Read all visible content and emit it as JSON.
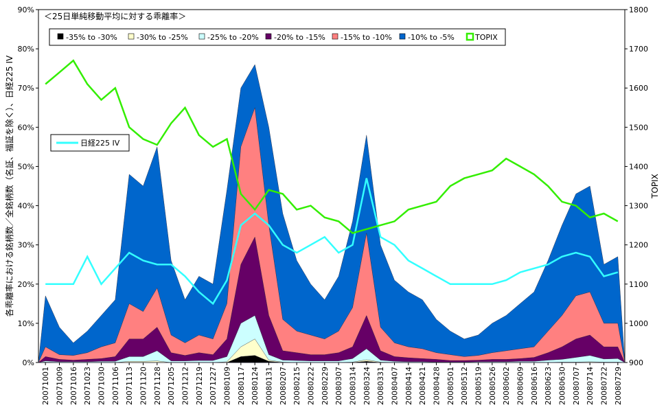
{
  "chart_data": {
    "type": "area",
    "title": "＜25日単純移動平均に対する乖離率＞",
    "ylabel_left": "各乖離率における銘柄数／全銘柄数（名証、福証を除く）、日経225 IV",
    "ylabel_right": "TOPIX",
    "ylim_left": [
      0,
      90
    ],
    "yticks_left": [
      "0%",
      "10%",
      "20%",
      "30%",
      "40%",
      "50%",
      "60%",
      "70%",
      "80%",
      "90%"
    ],
    "ylim_right": [
      900,
      1800
    ],
    "yticks_right": [
      "900",
      "1000",
      "1100",
      "1200",
      "1300",
      "1400",
      "1500",
      "1600",
      "1700",
      "1800"
    ],
    "x_tick_labels": [
      "20071001",
      "20071009",
      "20071016",
      "20071023",
      "20071030",
      "20071106",
      "20071113",
      "20071120",
      "20071128",
      "20071205",
      "20071212",
      "20071219",
      "20071227",
      "20080109",
      "20080117",
      "20080124",
      "20080131",
      "20080207",
      "20080215",
      "20080222",
      "20080229",
      "20080307",
      "20080314",
      "20080324",
      "20080331",
      "20080407",
      "20080414",
      "20080421",
      "20080428",
      "20080501",
      "20080512",
      "20080519",
      "20080526",
      "20080602",
      "20080609",
      "20080616",
      "20080623",
      "20080630",
      "20080707",
      "20080714",
      "20080722",
      "20080729"
    ],
    "legend": [
      "-35% to -30%",
      "-30% to -25%",
      "-25% to -20%",
      "-20% to -15%",
      "-15% to -10%",
      "-10% to -5%",
      "TOPIX"
    ],
    "iv_legend": "日経225 IV",
    "series_colors": {
      "-35% to -30%": "#000000",
      "-30% to -25%": "#ffffcc",
      "-25% to -20%": "#ccffff",
      "-20% to -15%": "#660066",
      "-15% to -10%": "#ff8080",
      "-10% to -5%": "#0066cc",
      "TOPIX": "#33ee00",
      "日経225 IV": "#33ffff"
    },
    "cumulative_bands": {
      "note": "cumulative top edge (%) of each band, sampled at the 42 dated ticks",
      "-35% to -30%": [
        0,
        0,
        0,
        0,
        0,
        0,
        0,
        0,
        0,
        0,
        0,
        0,
        0,
        0,
        1.5,
        1.8,
        0.3,
        0,
        0,
        0,
        0,
        0,
        0,
        0.3,
        0,
        0,
        0,
        0,
        0,
        0,
        0,
        0,
        0,
        0,
        0,
        0,
        0,
        0,
        0,
        0,
        0,
        0
      ],
      "-30% to -25%": [
        0.1,
        0,
        0,
        0,
        0,
        0,
        0.3,
        0.3,
        0.4,
        0,
        0,
        0,
        0,
        0.2,
        4,
        6,
        0.6,
        0.1,
        0,
        0,
        0,
        0,
        0.1,
        0.7,
        0.1,
        0,
        0,
        0,
        0,
        0,
        0,
        0,
        0,
        0,
        0,
        0,
        0,
        0.1,
        0.1,
        0.2,
        0.1,
        0.1
      ],
      "-25% to -20%": [
        0.4,
        0.2,
        0.2,
        0.2,
        0.3,
        0.3,
        1.5,
        1.5,
        3,
        0.4,
        0.4,
        0.5,
        0.5,
        1.5,
        10,
        12,
        2,
        0.6,
        0.5,
        0.4,
        0.4,
        0.4,
        1,
        3.5,
        0.6,
        0.3,
        0.2,
        0.2,
        0.1,
        0.1,
        0.1,
        0.2,
        0.2,
        0.2,
        0.3,
        0.3,
        0.6,
        0.8,
        1.3,
        1.8,
        0.9,
        1
      ],
      "-20% to -15%": [
        1.5,
        0.8,
        0.6,
        0.8,
        1,
        1.5,
        6,
        6,
        9,
        2.5,
        1.8,
        2.5,
        2,
        6,
        25,
        32,
        12,
        3,
        2.5,
        2,
        2,
        2.5,
        4,
        12,
        3,
        1.5,
        1.2,
        1,
        0.8,
        0.5,
        0.5,
        0.6,
        0.8,
        0.8,
        1,
        1.3,
        2.5,
        4,
        6,
        7,
        4,
        4
      ],
      "-15% to -10%": [
        4,
        2,
        1.8,
        2.5,
        4,
        5,
        15,
        13,
        19,
        7,
        5,
        7,
        6,
        15,
        55,
        65,
        35,
        11,
        8,
        7,
        6,
        8,
        14,
        33,
        9,
        5,
        4,
        3.5,
        2.5,
        2,
        1.5,
        1.8,
        2.5,
        3,
        3.5,
        4,
        8,
        12,
        17,
        18,
        10,
        10
      ],
      "-10% to -5%": [
        17,
        9,
        5,
        8,
        12,
        16,
        48,
        45,
        55,
        26,
        16,
        22,
        20,
        44,
        70,
        76,
        60,
        38,
        26,
        20,
        16,
        22,
        36,
        58,
        30,
        21,
        18,
        16,
        11,
        8,
        6,
        7,
        10,
        12,
        15,
        18,
        26,
        35,
        43,
        45,
        25,
        27
      ]
    },
    "topix": [
      1610,
      1640,
      1670,
      1610,
      1570,
      1600,
      1500,
      1470,
      1455,
      1510,
      1550,
      1480,
      1450,
      1470,
      1330,
      1290,
      1340,
      1330,
      1290,
      1300,
      1270,
      1260,
      1230,
      1240,
      1250,
      1260,
      1290,
      1300,
      1310,
      1350,
      1370,
      1380,
      1390,
      1420,
      1400,
      1380,
      1350,
      1310,
      1300,
      1270,
      1280,
      1260
    ],
    "nikkei225_iv": [
      20,
      20,
      20,
      27,
      20,
      24,
      28,
      26,
      25,
      25,
      22,
      18,
      15,
      21,
      35,
      38,
      35,
      30,
      28,
      30,
      32,
      28,
      30,
      47,
      32,
      30,
      26,
      24,
      22,
      20,
      20,
      20,
      20,
      21,
      23,
      24,
      25,
      27,
      28,
      27,
      22,
      23
    ]
  }
}
